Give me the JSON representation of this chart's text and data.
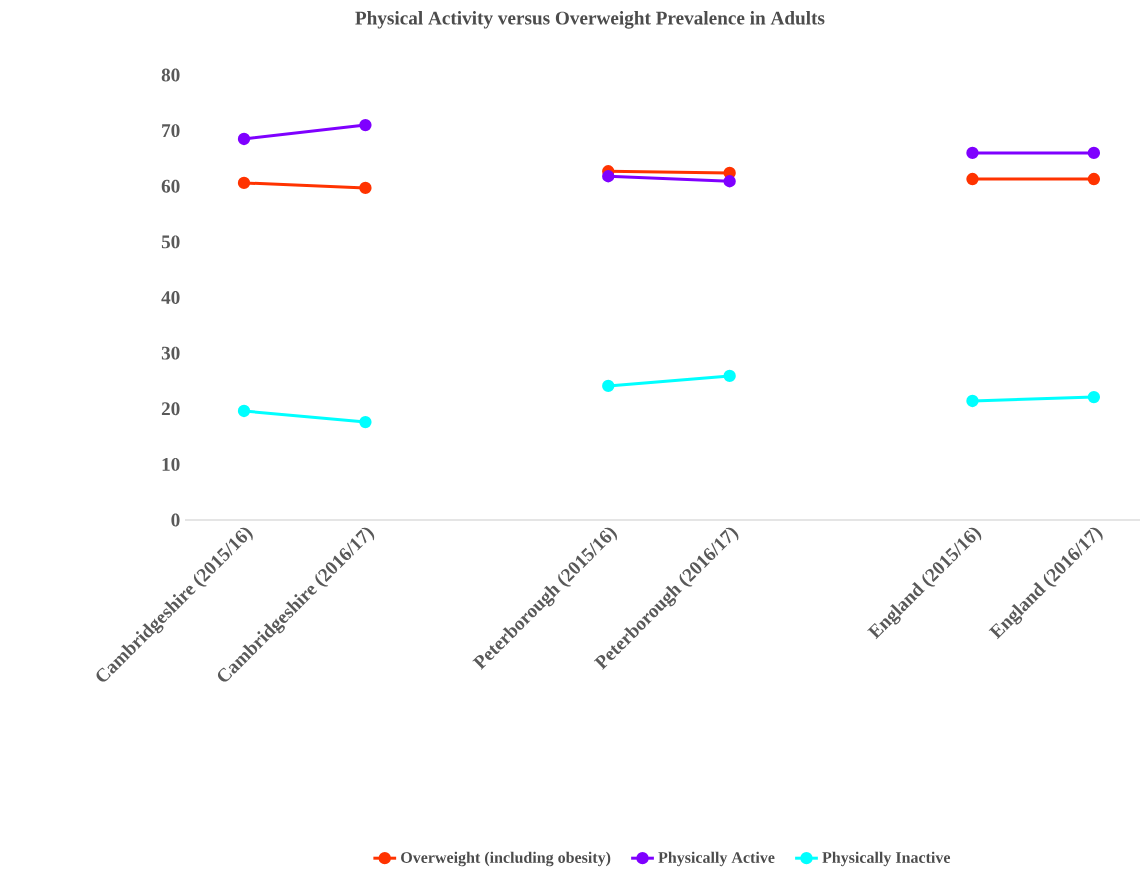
{
  "chart_data": {
    "type": "line",
    "title": "Physical Activity versus Overweight Prevalence in Adults",
    "categories": [
      "Cambridgeshire (2015/16)",
      "Cambridgeshire (2016/17)",
      null,
      "Peterborough (2015/16)",
      "Peterborough (2016/17)",
      null,
      "England (2015/16)",
      "England (2016/17)"
    ],
    "series": [
      {
        "name": "Overweight (including obesity)",
        "color": "#ff3300",
        "values": [
          60.6,
          59.7,
          null,
          62.7,
          62.4,
          null,
          61.3,
          61.3
        ]
      },
      {
        "name": "Physically Active",
        "color": "#7f00ff",
        "values": [
          68.5,
          71.0,
          null,
          61.8,
          60.9,
          null,
          66.0,
          66.0
        ]
      },
      {
        "name": "Physically Inactive",
        "color": "#00ffff",
        "values": [
          19.6,
          17.6,
          null,
          24.1,
          25.9,
          null,
          21.4,
          22.1
        ]
      }
    ],
    "ylim": [
      0,
      80
    ],
    "yticks": [
      0,
      10,
      20,
      30,
      40,
      50,
      60,
      70,
      80
    ],
    "grid": false,
    "legend": "bottom",
    "marker": "circle",
    "line_style": "solid"
  }
}
